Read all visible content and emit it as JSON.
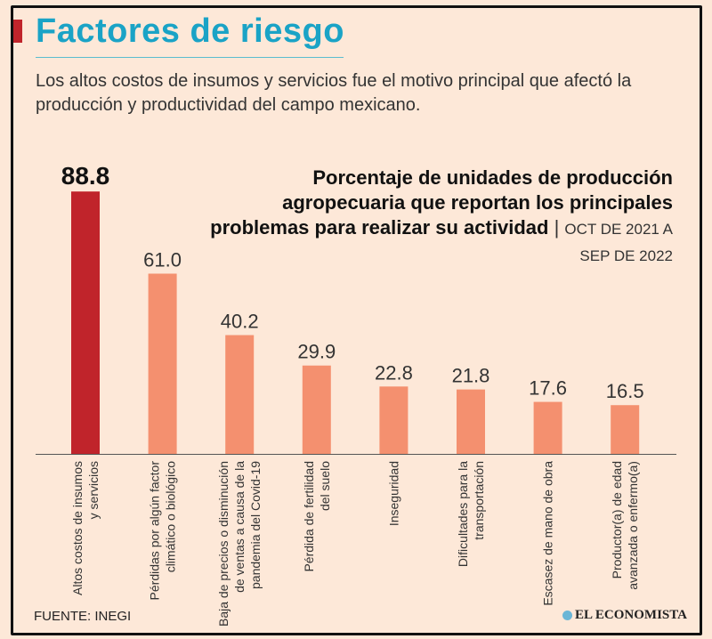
{
  "header": {
    "title": "Factores de riesgo",
    "subtitle": "Los altos costos de insumos y servicios fue el motivo principal que afectó la producción y productividad del campo mexicano."
  },
  "footer": {
    "source": "FUENTE: INEGI",
    "logo": "EL ECONOMISTA"
  },
  "colors": {
    "highlight": "#c0242b",
    "bar": "#f4906f",
    "title": "#1aa3c6",
    "background": "#fde8d8"
  },
  "chart_data": {
    "type": "bar",
    "title": "Porcentaje de unidades de producción agropecuaria que reportan los principales problemas para realizar su actividad",
    "period": "OCT DE 2021 A SEP DE 2022",
    "categories": [
      [
        "Altos costos de insumos",
        "y servicios"
      ],
      [
        "Pérdidas por algún factor",
        "climático o biológico"
      ],
      [
        "Baja de precios o disminución",
        "de ventas a causa de la",
        "pandemia del Covid-19"
      ],
      [
        "Pérdida de fertilidad",
        "del suelo"
      ],
      [
        "Inseguridad"
      ],
      [
        "Dificultades para la",
        "transportación"
      ],
      [
        "Escasez de mano de obra"
      ],
      [
        "Productor(a) de edad",
        "avanzada o enfermo(a)"
      ]
    ],
    "values": [
      88.8,
      61.0,
      40.2,
      29.9,
      22.8,
      21.8,
      17.6,
      16.5
    ],
    "value_labels": [
      "88.8",
      "61.0",
      "40.2",
      "29.9",
      "22.8",
      "21.8",
      "17.6",
      "16.5"
    ],
    "highlighted_index": 0,
    "ylim": [
      0,
      100
    ],
    "grid": false
  }
}
